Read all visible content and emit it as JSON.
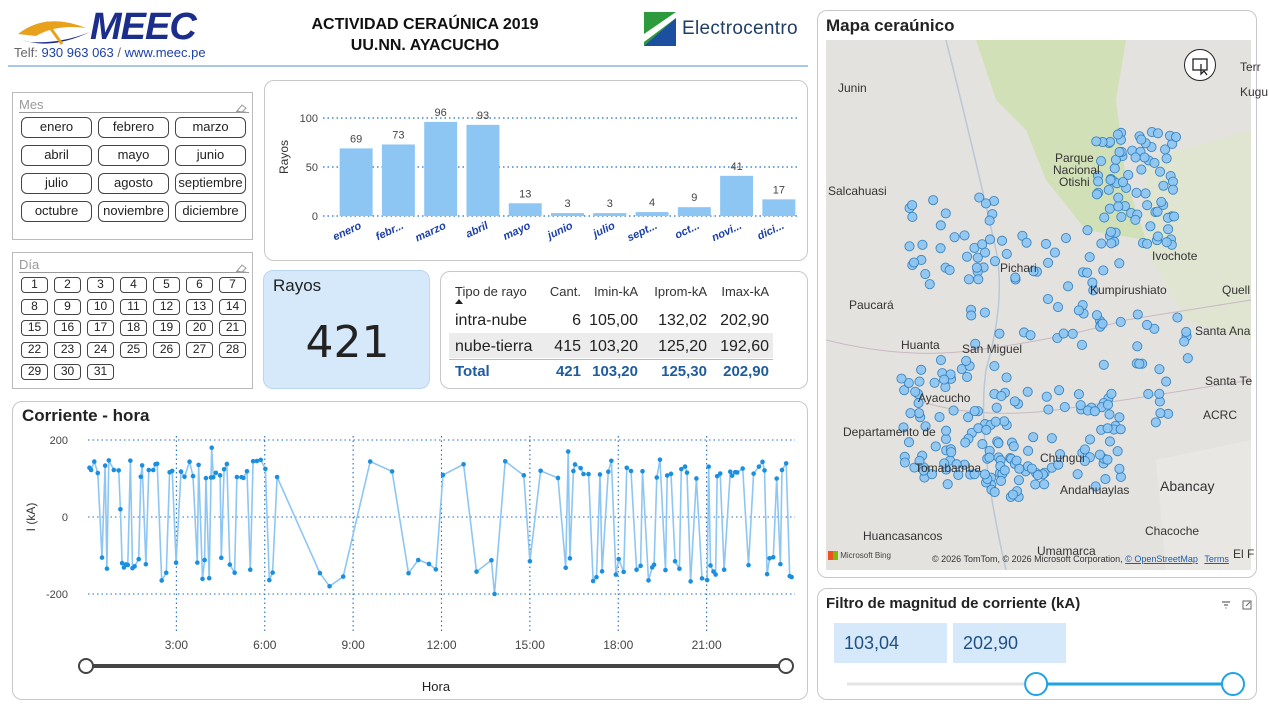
{
  "header": {
    "logo_text": "MEEC",
    "phone_label": "Telf:",
    "phone": "930 963 063",
    "separator": "/",
    "website": "www.meec.pe",
    "title_line1": "ACTIVIDAD CERAÚNICA 2019",
    "title_line2": "UU.NN. AYACUCHO",
    "partner_logo_text": "Electrocentro"
  },
  "colors": {
    "accent_blue": "#8ec6f3",
    "point_blue": "#1a8fe0",
    "brand_navy": "#1c2e8c",
    "total_blue": "#1f5c9e",
    "value_box": "#d6e9fb"
  },
  "mes_slicer": {
    "label": "Mes",
    "items": [
      "enero",
      "febrero",
      "marzo",
      "abril",
      "mayo",
      "junio",
      "julio",
      "agosto",
      "septiembre",
      "octubre",
      "noviembre",
      "diciembre"
    ]
  },
  "dia_slicer": {
    "label": "Día",
    "items": [
      "1",
      "2",
      "3",
      "4",
      "5",
      "6",
      "7",
      "8",
      "9",
      "10",
      "11",
      "12",
      "13",
      "14",
      "15",
      "16",
      "17",
      "18",
      "19",
      "20",
      "21",
      "22",
      "23",
      "24",
      "25",
      "26",
      "27",
      "28",
      "29",
      "30",
      "31"
    ]
  },
  "monthly_chart": {
    "ylabel": "Rayos"
  },
  "chart_data": [
    {
      "type": "bar",
      "title": "",
      "ylabel": "Rayos",
      "xlabel": "",
      "categories": [
        "enero",
        "febr...",
        "marzo",
        "abril",
        "mayo",
        "junio",
        "julio",
        "sept...",
        "oct...",
        "novi...",
        "dici..."
      ],
      "values": [
        69,
        73,
        96,
        93,
        13,
        3,
        3,
        4,
        9,
        41,
        17
      ],
      "yticks": [
        0,
        50,
        100
      ],
      "ylim": [
        0,
        100
      ],
      "grid": true
    },
    {
      "type": "line",
      "title": "Corriente - hora",
      "xlabel": "Hora",
      "ylabel": "I (kA)",
      "ylim": [
        -200,
        200
      ],
      "yticks": [
        -200,
        0,
        200
      ],
      "xlim": [
        0,
        24
      ],
      "xticks": [
        "3:00",
        "6:00",
        "9:00",
        "12:00",
        "15:00",
        "18:00",
        "21:00"
      ],
      "series_note": "alternating intra-nube (positive ~100-180 kA) and nube-tierra (negative ~-100 to -200 kA) strokes across 24 hours"
    }
  ],
  "kpi": {
    "label": "Rayos",
    "value": "421"
  },
  "table": {
    "headers": [
      "Tipo de rayo",
      "Cant.",
      "Imin-kA",
      "Iprom-kA",
      "Imax-kA"
    ],
    "rows": [
      [
        "intra-nube",
        "6",
        "105,00",
        "132,02",
        "202,90"
      ],
      [
        "nube-tierra",
        "415",
        "103,20",
        "125,20",
        "192,60"
      ]
    ],
    "total": [
      "Total",
      "421",
      "103,20",
      "125,30",
      "202,90"
    ]
  },
  "current_chart": {
    "title": "Corriente - hora",
    "ylabel": "I (kA)",
    "xlabel": "Hora",
    "yticks": [
      "200",
      "0",
      "-200"
    ],
    "xticks": [
      "3:00",
      "6:00",
      "9:00",
      "12:00",
      "15:00",
      "18:00",
      "21:00"
    ]
  },
  "map": {
    "title": "Mapa ceraúnico",
    "attribution": "© 2026 TomTom, © 2026 Microsoft Corporation,",
    "osm": "© OpenStreetMap",
    "terms": "Terms",
    "bing": "Microsoft Bing",
    "places": [
      {
        "name": "Junin",
        "x": 838,
        "y": 88
      },
      {
        "name": "Parque",
        "x": 1055,
        "y": 158
      },
      {
        "name": "Nacional",
        "x": 1053,
        "y": 170
      },
      {
        "name": "Otishi",
        "x": 1059,
        "y": 182
      },
      {
        "name": "Salcahuasi",
        "x": 828,
        "y": 191
      },
      {
        "name": "Ivochote",
        "x": 1152,
        "y": 256
      },
      {
        "name": "Pichari",
        "x": 1000,
        "y": 268
      },
      {
        "name": "Kumpirushiato",
        "x": 1090,
        "y": 290
      },
      {
        "name": "Quell",
        "x": 1222,
        "y": 290
      },
      {
        "name": "Paucará",
        "x": 849,
        "y": 305
      },
      {
        "name": "Santa Ana",
        "x": 1195,
        "y": 331
      },
      {
        "name": "Huanta",
        "x": 901,
        "y": 345
      },
      {
        "name": "San Miguel",
        "x": 962,
        "y": 349
      },
      {
        "name": "Santa Te",
        "x": 1205,
        "y": 381
      },
      {
        "name": "Ayacucho",
        "x": 918,
        "y": 398
      },
      {
        "name": "ACRC",
        "x": 1203,
        "y": 415
      },
      {
        "name": "Departamento de",
        "x": 843,
        "y": 432
      },
      {
        "name": "Tomabamba",
        "x": 915,
        "y": 468
      },
      {
        "name": "Chungui",
        "x": 1040,
        "y": 458
      },
      {
        "name": "Andahuaylas",
        "x": 1060,
        "y": 490
      },
      {
        "name": "Abancay",
        "x": 1160,
        "y": 485
      },
      {
        "name": "Chacoche",
        "x": 1145,
        "y": 531
      },
      {
        "name": "Huancasancos",
        "x": 863,
        "y": 536
      },
      {
        "name": "Umamarca",
        "x": 1037,
        "y": 551
      },
      {
        "name": "Terr",
        "x": 1240,
        "y": 67
      },
      {
        "name": "Kugu",
        "x": 1240,
        "y": 92
      },
      {
        "name": "El F",
        "x": 1233,
        "y": 554
      }
    ]
  },
  "filter": {
    "title": "Filtro de magnitud de corriente (kA)",
    "min_value": "103,04",
    "max_value": "202,90",
    "range_fraction_low": 0.49,
    "range_fraction_high": 1.0
  }
}
